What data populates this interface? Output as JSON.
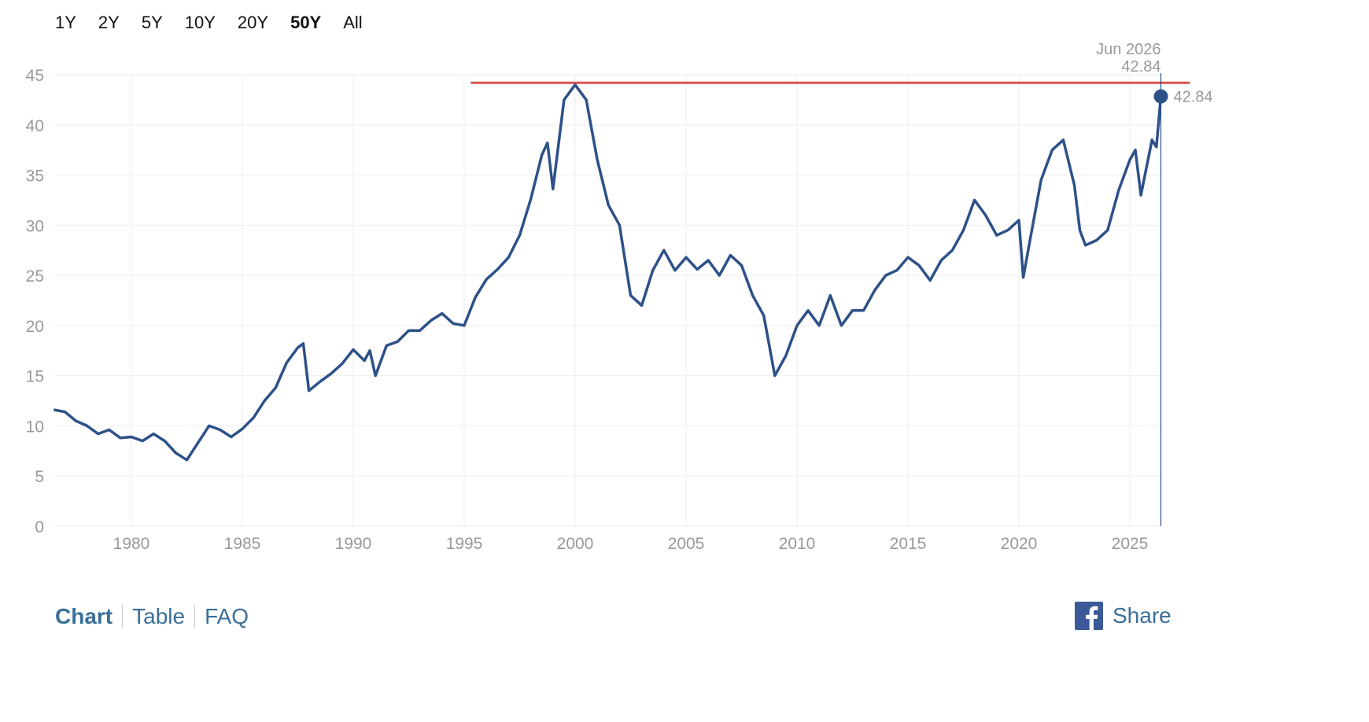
{
  "range_buttons": [
    {
      "label": "1Y",
      "active": false
    },
    {
      "label": "2Y",
      "active": false
    },
    {
      "label": "5Y",
      "active": false
    },
    {
      "label": "10Y",
      "active": false
    },
    {
      "label": "20Y",
      "active": false
    },
    {
      "label": "50Y",
      "active": true
    },
    {
      "label": "All",
      "active": false
    }
  ],
  "tooltip": {
    "date": "Jun 2026",
    "value": "42.84"
  },
  "footer": {
    "tabs": [
      "Chart",
      "Table",
      "FAQ"
    ],
    "share_label": "Share"
  },
  "colors": {
    "line": "#2d5188",
    "reference_line": "#d9534f",
    "tick_text": "#999999",
    "grid": "#eeeeee",
    "link": "#3a6f98",
    "facebook": "#3b5998"
  },
  "chart_data": {
    "type": "line",
    "title": "",
    "xlabel": "",
    "ylabel": "",
    "xlim": [
      1976.5,
      2027.0
    ],
    "ylim": [
      0,
      45
    ],
    "grid": true,
    "xticks": [
      "1980",
      "1985",
      "1990",
      "1995",
      "2000",
      "2005",
      "2010",
      "2015",
      "2020",
      "2025"
    ],
    "yticks": [
      "0",
      "5",
      "10",
      "15",
      "20",
      "25",
      "30",
      "35",
      "40",
      "45"
    ],
    "reference_line": {
      "y": 44.2,
      "x_start": 1995.3,
      "x_end": 2027.0
    },
    "cursor": {
      "x": 2026.4,
      "y": 42.84
    },
    "series": [
      {
        "x": [
          1976.5,
          1977.0,
          1977.5,
          1978.0,
          1978.5,
          1979.0,
          1979.5,
          1980.0,
          1980.5,
          1981.0,
          1981.5,
          1982.0,
          1982.5,
          1983.0,
          1983.5,
          1984.0,
          1984.5,
          1985.0,
          1985.5,
          1986.0,
          1986.5,
          1987.0,
          1987.5,
          1987.75,
          1988.0,
          1988.5,
          1989.0,
          1989.5,
          1990.0,
          1990.5,
          1990.75,
          1991.0,
          1991.5,
          1992.0,
          1992.5,
          1993.0,
          1993.5,
          1994.0,
          1994.5,
          1995.0,
          1995.5,
          1996.0,
          1996.5,
          1997.0,
          1997.5,
          1998.0,
          1998.5,
          1998.75,
          1999.0,
          1999.5,
          2000.0,
          2000.5,
          2001.0,
          2001.5,
          2002.0,
          2002.5,
          2003.0,
          2003.5,
          2004.0,
          2004.5,
          2005.0,
          2005.5,
          2006.0,
          2006.5,
          2007.0,
          2007.5,
          2008.0,
          2008.5,
          2009.0,
          2009.5,
          2010.0,
          2010.5,
          2011.0,
          2011.5,
          2012.0,
          2012.5,
          2013.0,
          2013.5,
          2014.0,
          2014.5,
          2015.0,
          2015.5,
          2016.0,
          2016.5,
          2017.0,
          2017.5,
          2018.0,
          2018.5,
          2019.0,
          2019.5,
          2020.0,
          2020.2,
          2020.5,
          2021.0,
          2021.5,
          2022.0,
          2022.5,
          2022.75,
          2023.0,
          2023.5,
          2024.0,
          2024.5,
          2025.0,
          2025.25,
          2025.5,
          2026.0,
          2026.2,
          2026.4
        ],
        "values": [
          11.6,
          11.4,
          10.5,
          10.0,
          9.2,
          9.6,
          8.8,
          8.9,
          8.5,
          9.2,
          8.5,
          7.3,
          6.6,
          8.3,
          10.0,
          9.6,
          8.9,
          9.7,
          10.8,
          12.5,
          13.8,
          16.3,
          17.8,
          18.2,
          13.5,
          14.4,
          15.2,
          16.2,
          17.6,
          16.5,
          17.5,
          15.0,
          18.0,
          18.4,
          19.5,
          19.5,
          20.5,
          21.2,
          20.2,
          20.0,
          22.8,
          24.6,
          25.6,
          26.8,
          29.0,
          32.6,
          37.0,
          38.2,
          33.6,
          42.5,
          44.0,
          42.5,
          36.5,
          32.0,
          30.0,
          23.0,
          22.0,
          25.5,
          27.5,
          25.5,
          26.8,
          25.6,
          26.5,
          25.0,
          27.0,
          26.0,
          23.0,
          21.0,
          15.0,
          17.0,
          20.0,
          21.5,
          20.0,
          23.0,
          20.0,
          21.5,
          21.5,
          23.5,
          25.0,
          25.5,
          26.8,
          26.0,
          24.5,
          26.5,
          27.5,
          29.5,
          32.5,
          31.0,
          29.0,
          29.5,
          30.5,
          24.8,
          28.5,
          34.5,
          37.5,
          38.5,
          34.0,
          29.5,
          28.0,
          28.5,
          29.5,
          33.5,
          36.5,
          37.5,
          33.0,
          38.5,
          37.8,
          42.84
        ]
      }
    ]
  }
}
